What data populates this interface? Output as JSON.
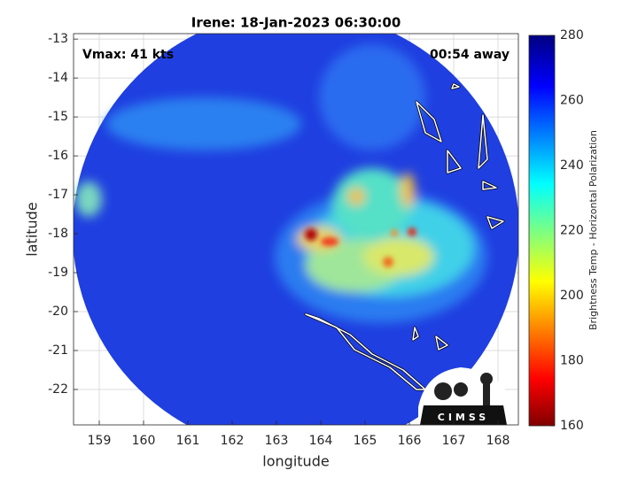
{
  "chart_data": {
    "type": "map",
    "title": "Irene: 18-Jan-2023 06:30:00",
    "annotations": [
      "Vmax: 41 kts",
      "00:54 away"
    ],
    "xlabel": "longitude",
    "ylabel": "latitude",
    "xlim": [
      158.42,
      168.46
    ],
    "ylim": [
      -22.91,
      -12.86
    ],
    "xticks": [
      159,
      160,
      161,
      162,
      163,
      164,
      165,
      166,
      167,
      168
    ],
    "yticks": [
      -22,
      -21,
      -20,
      -19,
      -18,
      -17,
      -16,
      -15,
      -14,
      -13
    ],
    "grid": true,
    "colorbar": {
      "label": "Brightness Temp - Horizontal Polarization",
      "clim": [
        160,
        280
      ],
      "ticks": [
        160,
        180,
        200,
        220,
        240,
        260,
        280
      ]
    },
    "logo": "CIMSS"
  }
}
